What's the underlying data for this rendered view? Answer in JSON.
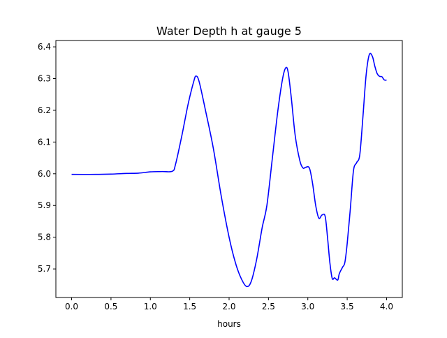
{
  "chart_data": {
    "type": "line",
    "title": "Water Depth h at gauge 5",
    "xlabel": "hours",
    "ylabel": "",
    "xlim": [
      -0.2,
      4.2
    ],
    "ylim": [
      5.61,
      6.42
    ],
    "x_ticks": [
      0.0,
      0.5,
      1.0,
      1.5,
      2.0,
      2.5,
      3.0,
      3.5,
      4.0
    ],
    "x_tick_labels": [
      "0.0",
      "0.5",
      "1.0",
      "1.5",
      "2.0",
      "2.5",
      "3.0",
      "3.5",
      "4.0"
    ],
    "y_ticks": [
      5.7,
      5.8,
      5.9,
      6.0,
      6.1,
      6.2,
      6.3,
      6.4
    ],
    "y_tick_labels": [
      "5.7",
      "5.8",
      "5.9",
      "6.0",
      "6.1",
      "6.2",
      "6.3",
      "6.4"
    ],
    "grid": false,
    "legend": "none",
    "line_color": "#0000ff",
    "series": [
      {
        "x": [
          0.0,
          0.3,
          0.5,
          0.7,
          0.85,
          1.0,
          1.15,
          1.28,
          1.32,
          1.4,
          1.48,
          1.55,
          1.58,
          1.62,
          1.7,
          1.8,
          1.9,
          2.0,
          2.08,
          2.15,
          2.22,
          2.28,
          2.35,
          2.42,
          2.48,
          2.55,
          2.62,
          2.68,
          2.72,
          2.75,
          2.79,
          2.84,
          2.9,
          2.94,
          2.97,
          3.02,
          3.06,
          3.1,
          3.14,
          3.18,
          3.22,
          3.25,
          3.28,
          3.31,
          3.34,
          3.38,
          3.4,
          3.44,
          3.47,
          3.5,
          3.54,
          3.58,
          3.62,
          3.66,
          3.7,
          3.74,
          3.78,
          3.82,
          3.85,
          3.88,
          3.91,
          3.94,
          3.97,
          4.0
        ],
        "y": [
          5.998,
          5.998,
          5.999,
          6.001,
          6.002,
          6.006,
          6.007,
          6.008,
          6.03,
          6.12,
          6.22,
          6.29,
          6.308,
          6.29,
          6.2,
          6.08,
          5.93,
          5.8,
          5.72,
          5.672,
          5.645,
          5.66,
          5.73,
          5.83,
          5.9,
          6.05,
          6.2,
          6.3,
          6.334,
          6.32,
          6.24,
          6.12,
          6.04,
          6.018,
          6.02,
          6.018,
          5.97,
          5.9,
          5.86,
          5.87,
          5.866,
          5.8,
          5.72,
          5.67,
          5.672,
          5.665,
          5.685,
          5.705,
          5.72,
          5.78,
          5.89,
          6.01,
          6.035,
          6.06,
          6.18,
          6.31,
          6.375,
          6.37,
          6.34,
          6.316,
          6.307,
          6.306,
          6.296,
          6.295
        ]
      }
    ]
  }
}
